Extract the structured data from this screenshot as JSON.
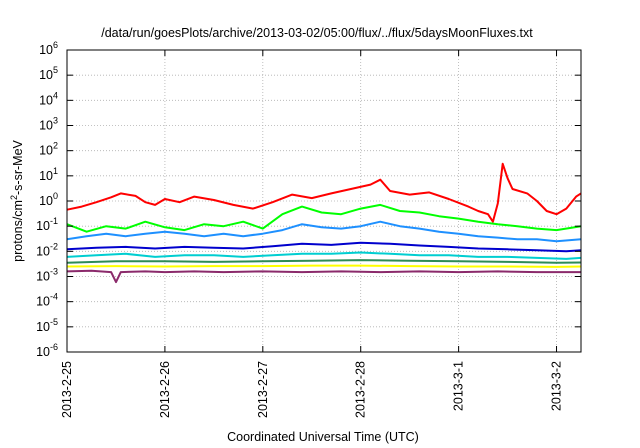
{
  "chart_data": {
    "type": "line",
    "title": "/data/run/goesPlots/archive/2013-03-02/05:00/flux/../flux/5daysMoonFluxes.txt",
    "xlabel": "Coordinated Universal Time (UTC)",
    "ylabel": {
      "base": "protons/cm",
      "sup": "2",
      "rest": "-s-sr-MeV"
    },
    "yscale": "log",
    "ylim_exp": [
      -6,
      6
    ],
    "ytick_exps": [
      "-6",
      "-5",
      "-4",
      "-3",
      "-2",
      "-1",
      "0",
      "1",
      "2",
      "3",
      "4",
      "5",
      "6"
    ],
    "ytick_base": "10",
    "x_range_days": [
      0,
      5.25
    ],
    "xticks": [
      {
        "label": "2013-2-25",
        "day": 0
      },
      {
        "label": "2013-2-26",
        "day": 1
      },
      {
        "label": "2013-2-27",
        "day": 2
      },
      {
        "label": "2013-2-28",
        "day": 3
      },
      {
        "label": "2013-3-1",
        "day": 4
      },
      {
        "label": "2013-3-2",
        "day": 5
      }
    ],
    "grid": true,
    "series": [
      {
        "color": "#ff0000",
        "points": [
          [
            0,
            0.45
          ],
          [
            0.15,
            0.6
          ],
          [
            0.3,
            0.9
          ],
          [
            0.45,
            1.4
          ],
          [
            0.55,
            2.0
          ],
          [
            0.7,
            1.6
          ],
          [
            0.8,
            0.9
          ],
          [
            0.9,
            0.7
          ],
          [
            1.0,
            1.2
          ],
          [
            1.15,
            0.9
          ],
          [
            1.3,
            1.5
          ],
          [
            1.5,
            1.1
          ],
          [
            1.7,
            0.7
          ],
          [
            1.9,
            0.5
          ],
          [
            2.1,
            0.9
          ],
          [
            2.3,
            1.8
          ],
          [
            2.5,
            1.3
          ],
          [
            2.7,
            2.0
          ],
          [
            2.9,
            3.0
          ],
          [
            3.1,
            4.5
          ],
          [
            3.2,
            7.0
          ],
          [
            3.3,
            2.5
          ],
          [
            3.5,
            1.8
          ],
          [
            3.7,
            2.2
          ],
          [
            3.9,
            1.2
          ],
          [
            4.1,
            0.6
          ],
          [
            4.2,
            0.4
          ],
          [
            4.3,
            0.3
          ],
          [
            4.35,
            0.15
          ],
          [
            4.4,
            0.8
          ],
          [
            4.45,
            30
          ],
          [
            4.5,
            8.0
          ],
          [
            4.55,
            3.0
          ],
          [
            4.7,
            2.0
          ],
          [
            4.8,
            1.0
          ],
          [
            4.9,
            0.4
          ],
          [
            5.0,
            0.3
          ],
          [
            5.1,
            0.5
          ],
          [
            5.2,
            1.5
          ],
          [
            5.25,
            2.0
          ]
        ]
      },
      {
        "color": "#00ff00",
        "points": [
          [
            0,
            0.12
          ],
          [
            0.2,
            0.06
          ],
          [
            0.4,
            0.1
          ],
          [
            0.6,
            0.08
          ],
          [
            0.8,
            0.15
          ],
          [
            1.0,
            0.09
          ],
          [
            1.2,
            0.07
          ],
          [
            1.4,
            0.12
          ],
          [
            1.6,
            0.1
          ],
          [
            1.8,
            0.15
          ],
          [
            2.0,
            0.08
          ],
          [
            2.2,
            0.3
          ],
          [
            2.4,
            0.6
          ],
          [
            2.6,
            0.35
          ],
          [
            2.8,
            0.3
          ],
          [
            3.0,
            0.5
          ],
          [
            3.2,
            0.7
          ],
          [
            3.4,
            0.4
          ],
          [
            3.6,
            0.35
          ],
          [
            3.8,
            0.25
          ],
          [
            4.0,
            0.2
          ],
          [
            4.2,
            0.15
          ],
          [
            4.4,
            0.12
          ],
          [
            4.6,
            0.1
          ],
          [
            4.8,
            0.08
          ],
          [
            5.0,
            0.07
          ],
          [
            5.25,
            0.1
          ]
        ]
      },
      {
        "color": "#1e90ff",
        "points": [
          [
            0,
            0.03
          ],
          [
            0.2,
            0.04
          ],
          [
            0.4,
            0.05
          ],
          [
            0.6,
            0.04
          ],
          [
            0.8,
            0.05
          ],
          [
            1.0,
            0.06
          ],
          [
            1.2,
            0.05
          ],
          [
            1.4,
            0.04
          ],
          [
            1.6,
            0.05
          ],
          [
            1.8,
            0.04
          ],
          [
            2.0,
            0.05
          ],
          [
            2.2,
            0.07
          ],
          [
            2.4,
            0.12
          ],
          [
            2.6,
            0.09
          ],
          [
            2.8,
            0.08
          ],
          [
            3.0,
            0.1
          ],
          [
            3.2,
            0.15
          ],
          [
            3.4,
            0.1
          ],
          [
            3.6,
            0.08
          ],
          [
            3.8,
            0.06
          ],
          [
            4.0,
            0.05
          ],
          [
            4.2,
            0.04
          ],
          [
            4.4,
            0.035
          ],
          [
            4.6,
            0.03
          ],
          [
            4.8,
            0.03
          ],
          [
            5.0,
            0.025
          ],
          [
            5.25,
            0.03
          ]
        ]
      },
      {
        "color": "#0000cd",
        "points": [
          [
            0,
            0.012
          ],
          [
            0.3,
            0.014
          ],
          [
            0.6,
            0.015
          ],
          [
            0.9,
            0.013
          ],
          [
            1.2,
            0.015
          ],
          [
            1.5,
            0.014
          ],
          [
            1.8,
            0.013
          ],
          [
            2.1,
            0.016
          ],
          [
            2.4,
            0.02
          ],
          [
            2.7,
            0.018
          ],
          [
            3.0,
            0.022
          ],
          [
            3.3,
            0.02
          ],
          [
            3.6,
            0.017
          ],
          [
            3.9,
            0.015
          ],
          [
            4.2,
            0.013
          ],
          [
            4.5,
            0.012
          ],
          [
            4.8,
            0.011
          ],
          [
            5.1,
            0.01
          ],
          [
            5.25,
            0.011
          ]
        ]
      },
      {
        "color": "#00ced1",
        "points": [
          [
            0,
            0.006
          ],
          [
            0.3,
            0.007
          ],
          [
            0.6,
            0.008
          ],
          [
            0.9,
            0.006
          ],
          [
            1.2,
            0.007
          ],
          [
            1.5,
            0.007
          ],
          [
            1.8,
            0.006
          ],
          [
            2.1,
            0.007
          ],
          [
            2.4,
            0.008
          ],
          [
            2.7,
            0.008
          ],
          [
            3.0,
            0.009
          ],
          [
            3.3,
            0.008
          ],
          [
            3.6,
            0.007
          ],
          [
            3.9,
            0.007
          ],
          [
            4.2,
            0.006
          ],
          [
            4.5,
            0.006
          ],
          [
            4.8,
            0.0055
          ],
          [
            5.1,
            0.005
          ],
          [
            5.25,
            0.0055
          ]
        ]
      },
      {
        "color": "#2e8b57",
        "points": [
          [
            0,
            0.0035
          ],
          [
            0.5,
            0.004
          ],
          [
            1.0,
            0.004
          ],
          [
            1.5,
            0.0038
          ],
          [
            2.0,
            0.004
          ],
          [
            2.5,
            0.0042
          ],
          [
            3.0,
            0.0045
          ],
          [
            3.5,
            0.0042
          ],
          [
            4.0,
            0.004
          ],
          [
            4.5,
            0.0038
          ],
          [
            5.0,
            0.0035
          ],
          [
            5.25,
            0.0036
          ]
        ]
      },
      {
        "color": "#ffff00",
        "points": [
          [
            0,
            0.0025
          ],
          [
            0.5,
            0.0026
          ],
          [
            1.0,
            0.0025
          ],
          [
            1.5,
            0.0026
          ],
          [
            2.0,
            0.0026
          ],
          [
            2.5,
            0.0027
          ],
          [
            3.0,
            0.0027
          ],
          [
            3.5,
            0.0026
          ],
          [
            4.0,
            0.0025
          ],
          [
            4.5,
            0.0025
          ],
          [
            5.0,
            0.0024
          ],
          [
            5.25,
            0.0025
          ]
        ]
      },
      {
        "color": "#8b2a6b",
        "points": [
          [
            0,
            0.0016
          ],
          [
            0.25,
            0.0017
          ],
          [
            0.45,
            0.0015
          ],
          [
            0.5,
            0.0006
          ],
          [
            0.55,
            0.0015
          ],
          [
            0.8,
            0.0016
          ],
          [
            1.0,
            0.0015
          ],
          [
            1.3,
            0.0016
          ],
          [
            1.6,
            0.0015
          ],
          [
            2.0,
            0.0016
          ],
          [
            2.4,
            0.0015
          ],
          [
            2.8,
            0.0016
          ],
          [
            3.2,
            0.0015
          ],
          [
            3.6,
            0.0016
          ],
          [
            4.0,
            0.0015
          ],
          [
            4.4,
            0.0016
          ],
          [
            4.8,
            0.0015
          ],
          [
            5.25,
            0.0015
          ]
        ]
      }
    ]
  }
}
